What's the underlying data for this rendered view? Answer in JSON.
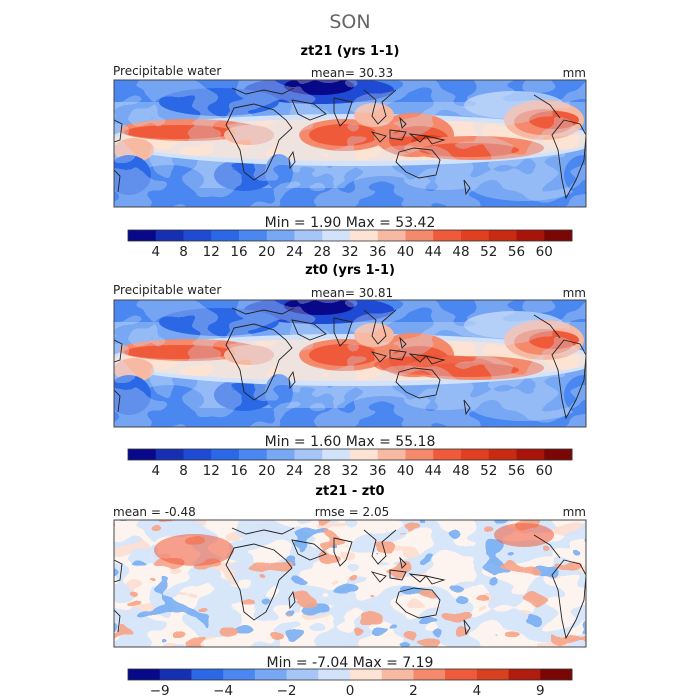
{
  "chart_data": {
    "type": "heatmap",
    "suptitle": "SON",
    "panels": [
      {
        "id": "zt21",
        "title": "zt21 (yrs 1-1)",
        "left_label": "Precipitable water",
        "center_label": "mean=  30.33",
        "right_label": "mm",
        "min_max_label": "Min =    1.90  Max =   53.42",
        "min": 1.9,
        "max": 53.42,
        "mean": 30.33,
        "colorbar_ticks": [
          "4",
          "8",
          "12",
          "16",
          "20",
          "24",
          "28",
          "32",
          "36",
          "40",
          "44",
          "48",
          "52",
          "56",
          "60"
        ],
        "colorbar_levels": 16
      },
      {
        "id": "zt0",
        "title": "zt0 (yrs 1-1)",
        "left_label": "Precipitable water",
        "center_label": "mean=  30.81",
        "right_label": "mm",
        "min_max_label": "Min =    1.60  Max =   55.18",
        "min": 1.6,
        "max": 55.18,
        "mean": 30.81,
        "colorbar_ticks": [
          "4",
          "8",
          "12",
          "16",
          "20",
          "24",
          "28",
          "32",
          "36",
          "40",
          "44",
          "48",
          "52",
          "56",
          "60"
        ],
        "colorbar_levels": 16
      },
      {
        "id": "diff",
        "title": "zt21 - zt0",
        "left_label": "mean =  -0.48",
        "center_label": "rmse =   2.05",
        "right_label": "mm",
        "min_max_label": "Min =   -7.04  Max =    7.19",
        "min": -7.04,
        "max": 7.19,
        "mean": -0.48,
        "rmse": 2.05,
        "colorbar_ticks": [
          "-9",
          "-4",
          "-2",
          "0",
          "2",
          "4",
          "9"
        ],
        "colorbar_levels": 14
      }
    ]
  },
  "colors": {
    "palette_16": [
      "#08088a",
      "#1630b4",
      "#1f4ad4",
      "#2b68e6",
      "#4a87f0",
      "#78a8f4",
      "#a6c6f8",
      "#d2e2fb",
      "#fce3d4",
      "#f8b9a2",
      "#f4896c",
      "#ee5a3a",
      "#e0401f",
      "#c82a12",
      "#a8140a",
      "#7a0606"
    ],
    "palette_14": [
      "#08088a",
      "#1630b4",
      "#2b68e6",
      "#4a87f0",
      "#78a8f4",
      "#a6c6f8",
      "#d2e2fb",
      "#fce3d4",
      "#f8b9a2",
      "#f4896c",
      "#ee5a3a",
      "#d8401f",
      "#b01c0e",
      "#7a0606"
    ],
    "land_line": "#222222",
    "frame": "#444444"
  }
}
